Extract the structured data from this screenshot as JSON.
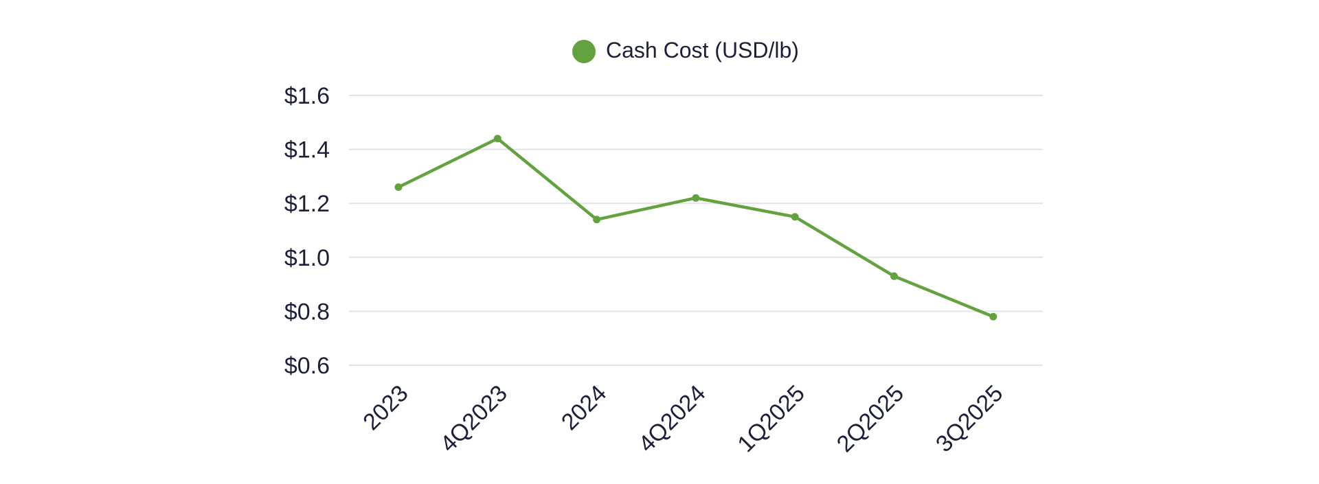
{
  "chart_data": {
    "type": "line",
    "categories": [
      "2023",
      "4Q2023",
      "2024",
      "4Q2024",
      "1Q2025",
      "2Q2025",
      "3Q2025"
    ],
    "series": [
      {
        "name": "Cash Cost (USD/lb)",
        "values": [
          1.26,
          1.44,
          1.14,
          1.22,
          1.15,
          0.93,
          0.78
        ]
      }
    ],
    "ylim": [
      0.6,
      1.6
    ],
    "yticks": [
      "$0.6",
      "$0.8",
      "$1.0",
      "$1.2",
      "$1.4",
      "$1.6"
    ],
    "ytick_values": [
      0.6,
      0.8,
      1.0,
      1.2,
      1.4,
      1.6
    ],
    "grid": true,
    "legend": "top-center",
    "colors": {
      "series": "#64a240",
      "grid": "#e3e3e3",
      "text": "#1c1f3a"
    }
  }
}
